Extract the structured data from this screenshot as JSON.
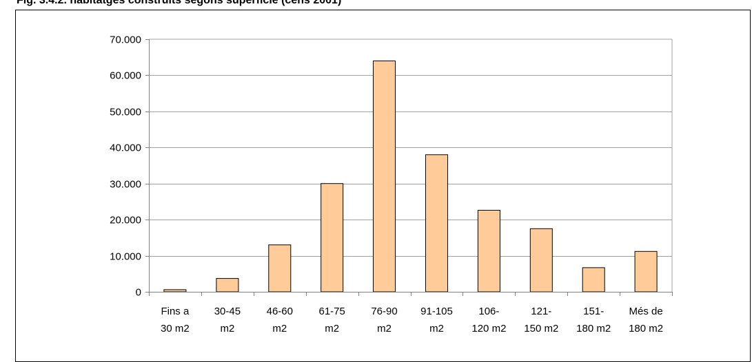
{
  "figure": {
    "title": "Fig. 3.4.2. habitatges construïts segons superfície (cens 2001)"
  },
  "chart_data": {
    "type": "bar",
    "categories": [
      [
        "Fins a",
        "30 m2"
      ],
      [
        "30-45",
        "m2"
      ],
      [
        "46-60",
        "m2"
      ],
      [
        "61-75",
        "m2"
      ],
      [
        "76-90",
        "m2"
      ],
      [
        "91-105",
        "m2"
      ],
      [
        "106-",
        "120 m2"
      ],
      [
        "121-",
        "150 m2"
      ],
      [
        "151-",
        "180 m2"
      ],
      [
        "Més de",
        "180 m2"
      ]
    ],
    "values": [
      600,
      3700,
      13000,
      30000,
      64000,
      38000,
      22600,
      17500,
      6700,
      11200
    ],
    "ylim": [
      0,
      70000
    ],
    "yticks": [
      0,
      10000,
      20000,
      30000,
      40000,
      50000,
      60000,
      70000
    ],
    "ytick_labels": [
      "0",
      "10.000",
      "20.000",
      "30.000",
      "40.000",
      "50.000",
      "60.000",
      "70.000"
    ],
    "grid": true,
    "legend": "none",
    "colors": {
      "bar_fill": "#FFCC99",
      "bar_stroke": "#000000",
      "grid": "#A0A0A0",
      "axis": "#808080"
    }
  }
}
